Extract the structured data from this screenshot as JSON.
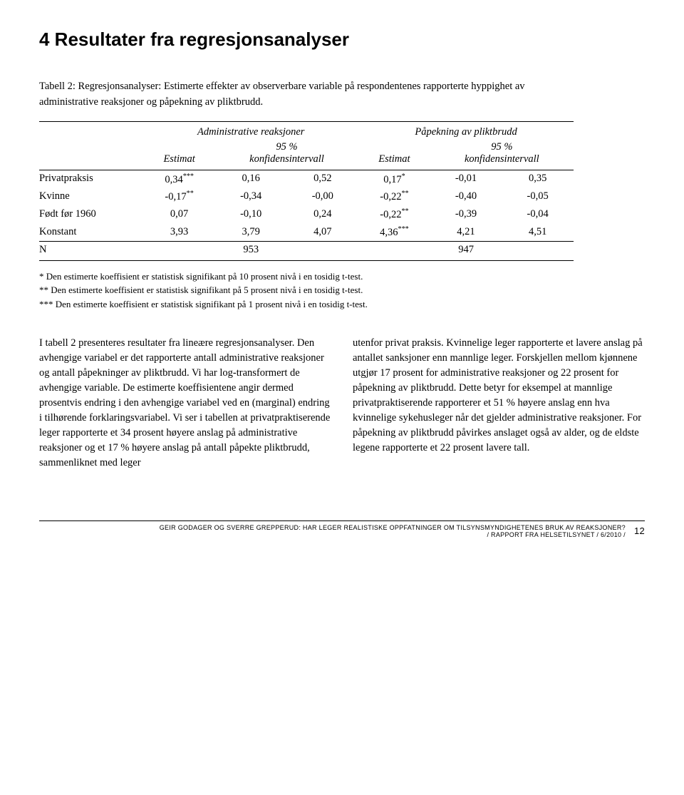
{
  "heading": "4 Resultater fra regresjonsanalyser",
  "table_caption": "Tabell 2: Regresjonsanalyser: Estimerte effekter av observerbare variable på respondentenes rapporterte hyppighet av administrative reaksjoner og påpekning av pliktbrudd.",
  "table": {
    "group_headers": {
      "admin": "Administrative reaksjoner",
      "plikt": "Påpekning av pliktbrudd"
    },
    "sub_headers": {
      "estimat": "Estimat",
      "ci": "95 %\nkonfidensintervall"
    },
    "rows": [
      {
        "label": "Privatpraksis",
        "a_est": "0,34***",
        "a_lo": "0,16",
        "a_hi": "0,52",
        "p_est": "0,17*",
        "p_lo": "-0,01",
        "p_hi": "0,35"
      },
      {
        "label": "Kvinne",
        "a_est": "-0,17**",
        "a_lo": "-0,34",
        "a_hi": "-0,00",
        "p_est": "-0,22**",
        "p_lo": "-0,40",
        "p_hi": "-0,05"
      },
      {
        "label": "Født før 1960",
        "a_est": "0,07",
        "a_lo": "-0,10",
        "a_hi": "0,24",
        "p_est": "-0,22**",
        "p_lo": "-0,39",
        "p_hi": "-0,04"
      },
      {
        "label": "Konstant",
        "a_est": "3,93",
        "a_lo": "3,79",
        "a_hi": "4,07",
        "p_est": "4,36***",
        "p_lo": "4,21",
        "p_hi": "4,51"
      }
    ],
    "n_row": {
      "label": "N",
      "a_val": "953",
      "p_val": "947"
    }
  },
  "footnotes": {
    "f1": "* Den estimerte koeffisient er statistisk signifikant på 10 prosent nivå i en tosidig t-test.",
    "f2": "** Den estimerte koeffisient er statistisk signifikant på 5 prosent nivå i en tosidig t-test.",
    "f3": "*** Den estimerte koeffisient er statistisk signifikant på 1 prosent nivå i en tosidig t-test."
  },
  "body": {
    "col1": "I tabell 2 presenteres resultater fra lineære regresjonsanalyser. Den avhengige variabel er det rapporterte antall administrative reaksjoner og antall påpekninger av pliktbrudd. Vi har log-transformert de avhengige variable. De estimerte koeffisientene angir dermed prosentvis endring i den avhengige variabel ved en (marginal) endring i tilhørende forklaringsvariabel. Vi ser i tabellen at privatpraktiserende leger rapporterte et 34 prosent høyere anslag på administrative reaksjoner og et 17 % høyere anslag på antall påpekte pliktbrudd, sammenliknet med leger",
    "col2": "utenfor privat praksis. Kvinnelige leger rapporterte et lavere anslag på antallet sanksjoner enn mannlige leger. Forskjellen mellom kjønnene utgjør 17 prosent for administrative reaksjoner og 22 prosent for påpekning av pliktbrudd. Dette betyr for eksempel at mannlige privatpraktiserende rapporterer et 51 % høyere anslag enn hva kvinnelige sykehusleger når det gjelder administrative reaksjoner. For påpekning av pliktbrudd påvirkes anslaget også av alder, og de eldste legene rapporterte et 22 prosent lavere tall."
  },
  "footer": {
    "line1": "GEIR GODAGER OG SVERRE GREPPERUD: HAR LEGER REALISTISKE OPPFATNINGER OM TILSYNSMYNDIGHETENES BRUK AV REAKSJONER?",
    "line2": "/ RAPPORT FRA HELSETILSYNET / 6/2010 /",
    "page": "12"
  }
}
